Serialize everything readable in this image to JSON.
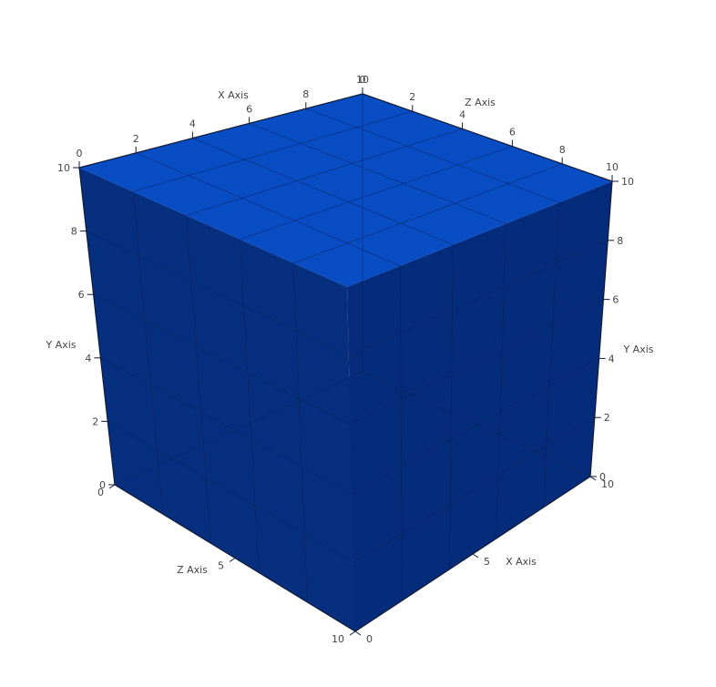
{
  "scene": {
    "colors": {
      "top_face": "#0047c2",
      "left_face": "#06307f",
      "right_face": "#042c7a",
      "floor": "#04307f"
    }
  },
  "axes": {
    "x_top": {
      "title": "X Axis",
      "ticks": [
        {
          "label": "0",
          "value": 0
        },
        {
          "label": "2",
          "value": 2
        },
        {
          "label": "4",
          "value": 4
        },
        {
          "label": "6",
          "value": 6
        },
        {
          "label": "8",
          "value": 8
        },
        {
          "label": "10",
          "value": 10
        }
      ]
    },
    "z_top": {
      "title": "Z Axis",
      "ticks": [
        {
          "label": "0",
          "value": 0
        },
        {
          "label": "2",
          "value": 2
        },
        {
          "label": "4",
          "value": 4
        },
        {
          "label": "6",
          "value": 6
        },
        {
          "label": "8",
          "value": 8
        },
        {
          "label": "10",
          "value": 10
        }
      ]
    },
    "y_left": {
      "title": "Y Axis",
      "ticks": [
        {
          "label": "0",
          "value": 0
        },
        {
          "label": "2",
          "value": 2
        },
        {
          "label": "4",
          "value": 4
        },
        {
          "label": "6",
          "value": 6
        },
        {
          "label": "8",
          "value": 8
        },
        {
          "label": "10",
          "value": 10
        }
      ]
    },
    "y_right": {
      "title": "Y Axis",
      "ticks": [
        {
          "label": "0",
          "value": 0
        },
        {
          "label": "2",
          "value": 2
        },
        {
          "label": "4",
          "value": 4
        },
        {
          "label": "6",
          "value": 6
        },
        {
          "label": "8",
          "value": 8
        },
        {
          "label": "10",
          "value": 10
        }
      ]
    },
    "z_bottom": {
      "title": "Z Axis",
      "ticks": [
        {
          "label": "0",
          "value": 0
        },
        {
          "label": "5",
          "value": 5
        },
        {
          "label": "10",
          "value": 10
        }
      ]
    },
    "x_bottom": {
      "title": "X Axis",
      "ticks": [
        {
          "label": "0",
          "value": 0
        },
        {
          "label": "5",
          "value": 5
        },
        {
          "label": "10",
          "value": 10
        }
      ]
    }
  }
}
